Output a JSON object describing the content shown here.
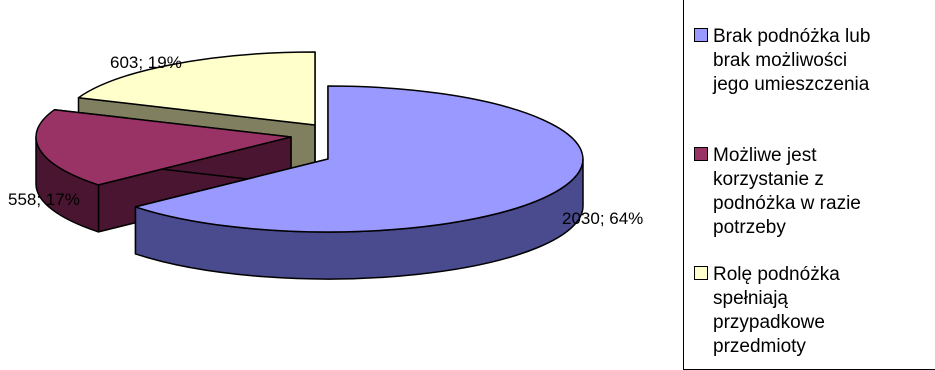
{
  "chart_data": {
    "type": "pie",
    "title": "",
    "categories": [
      "Brak podnóżka lub brak możliwości jego umieszczenia",
      "Możliwe jest korzystanie z podnóżka w razie potrzeby",
      "Rolę podnóżka spełniają przypadkowe przedmioty"
    ],
    "values": [
      2030,
      558,
      603
    ],
    "percent_labels": [
      "64%",
      "17%",
      "19%"
    ],
    "data_labels": [
      "2030; 64%",
      "558; 17%",
      "603; 19%"
    ],
    "colors": [
      "#9999ff",
      "#993366",
      "#ffffcc"
    ],
    "side_colors": [
      "#4a4a8f",
      "#4a1530",
      "#808060"
    ],
    "legend_position": "right",
    "style": "3d-exploded"
  },
  "legend": {
    "items": [
      {
        "label": "Brak podnóżka lub\nbrak możliwości\njego umieszczenia",
        "color": "#9999ff"
      },
      {
        "label": "Możliwe jest\nkorzystanie z\npodnóżka w razie\npotrzeby",
        "color": "#993366"
      },
      {
        "label": "Rolę podnóżka\nspełniają\nprzypadkowe\nprzedmioty",
        "color": "#ffffcc"
      }
    ]
  }
}
